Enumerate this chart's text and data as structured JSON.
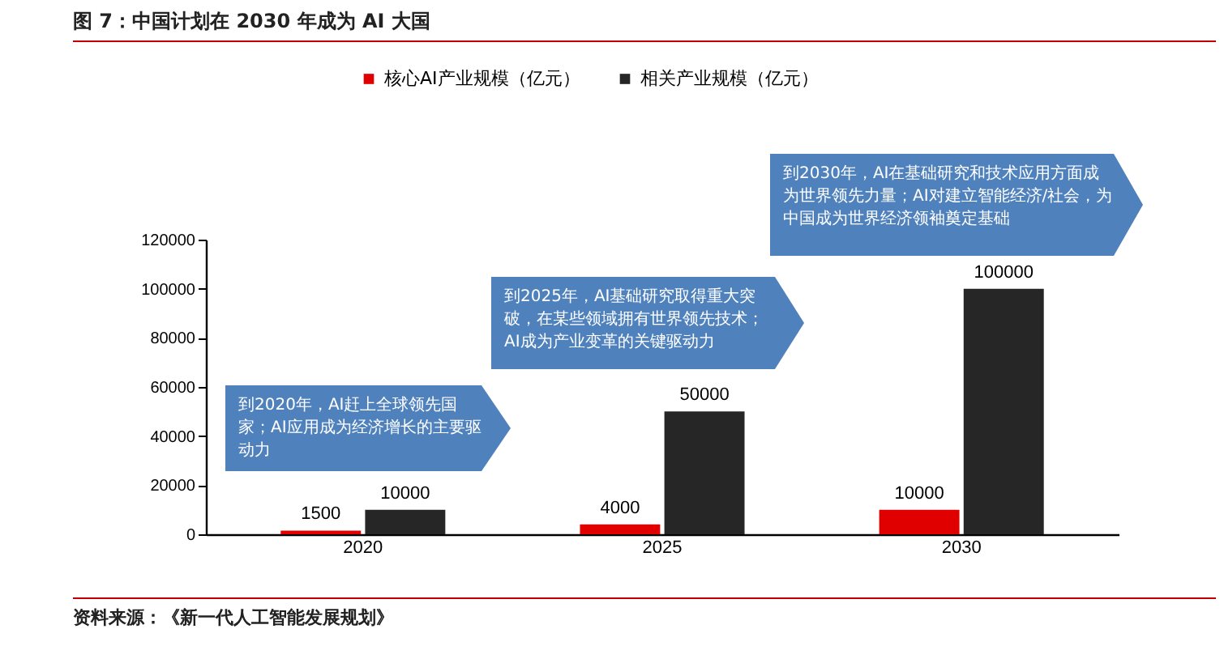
{
  "chart_data": {
    "type": "bar",
    "title": "图 7：中国计划在 2030 年成为 AI 大国",
    "categories": [
      "2020",
      "2025",
      "2030"
    ],
    "series": [
      {
        "name": "核心AI产业规模（亿元）",
        "color": "#e00000",
        "values": [
          1500,
          4000,
          10000
        ]
      },
      {
        "name": "相关产业规模（亿元）",
        "color": "#262626",
        "values": [
          10000,
          50000,
          100000
        ]
      }
    ],
    "ylim": [
      0,
      120000
    ],
    "yticks": [
      0,
      20000,
      40000,
      60000,
      80000,
      100000,
      120000
    ],
    "grid": false,
    "legend": "top",
    "data_labels": true,
    "annotations": [
      "到2020年，AI赶上全球领先国家；AI应用成为经济增长的主要驱动力",
      "到2025年，AI基础研究取得重大突破，在某些领域拥有世界领先技术；AI成为产业变革的关键驱动力",
      "到2030年，AI在基础研究和技术应用方面成为世界领先力量；AI对建立智能经济/社会，为中国成为世界经济领袖奠定基础",
      "资料来源：《新一代人工智能发展规划》"
    ]
  }
}
